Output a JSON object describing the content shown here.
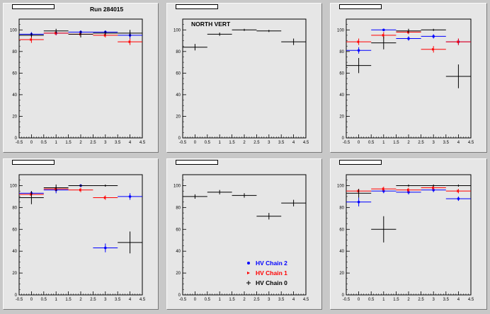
{
  "page": {
    "run_label": "Run 284015",
    "legend": [
      {
        "label": "HV Chain 2",
        "color": "#0000ff"
      },
      {
        "label": "HV Chain 1",
        "color": "#ff0000"
      },
      {
        "label": "HV Chain 0",
        "color": "#000000"
      }
    ]
  },
  "chart_data": [
    {
      "type": "scatter",
      "panel_title": "",
      "annotation": "",
      "xlim": [
        -0.5,
        4.5
      ],
      "ylim": [
        0,
        110
      ],
      "xticks": [
        "-0.5",
        "0",
        "0.5",
        "1",
        "1.5",
        "2",
        "2.5",
        "3",
        "3.5",
        "4",
        "4.5"
      ],
      "yticks": [
        "0",
        "20",
        "40",
        "60",
        "80",
        "100"
      ],
      "series": [
        {
          "name": "HV Chain 2",
          "color": "#0000ff",
          "points": [
            {
              "x": 0,
              "y": 96,
              "xerr": 0.5,
              "yerr": 2
            },
            {
              "x": 1,
              "y": 97,
              "xerr": 0.5,
              "yerr": 2
            },
            {
              "x": 2,
              "y": 98,
              "xerr": 0.5,
              "yerr": 1.5
            },
            {
              "x": 3,
              "y": 98,
              "xerr": 0.5,
              "yerr": 1.5
            },
            {
              "x": 4,
              "y": 95,
              "xerr": 0.5,
              "yerr": 3
            }
          ]
        },
        {
          "name": "HV Chain 1",
          "color": "#ff0000",
          "points": [
            {
              "x": 0,
              "y": 91,
              "xerr": 0.5,
              "yerr": 3
            },
            {
              "x": 1,
              "y": 97,
              "xerr": 0.5,
              "yerr": 2
            },
            {
              "x": 2,
              "y": 96,
              "xerr": 0.5,
              "yerr": 2
            },
            {
              "x": 3,
              "y": 95,
              "xerr": 0.5,
              "yerr": 2
            },
            {
              "x": 4,
              "y": 89,
              "xerr": 0.5,
              "yerr": 3
            }
          ]
        },
        {
          "name": "HV Chain 0",
          "color": "#000000",
          "points": [
            {
              "x": 0,
              "y": 95,
              "xerr": 0.5,
              "yerr": 2
            },
            {
              "x": 1,
              "y": 99,
              "xerr": 0.5,
              "yerr": 2
            },
            {
              "x": 2,
              "y": 96,
              "xerr": 0.5,
              "yerr": 3
            },
            {
              "x": 3,
              "y": 97,
              "xerr": 0.5,
              "yerr": 2
            },
            {
              "x": 4,
              "y": 97,
              "xerr": 0.5,
              "yerr": 3
            }
          ]
        }
      ]
    },
    {
      "type": "scatter",
      "panel_title": "",
      "annotation": "NORTH VERT",
      "xlim": [
        -0.5,
        4.5
      ],
      "ylim": [
        0,
        110
      ],
      "xticks": [
        "-0.5",
        "0",
        "0.5",
        "1",
        "1.5",
        "2",
        "2.5",
        "3",
        "3.5",
        "4",
        "4.5"
      ],
      "yticks": [
        "0",
        "20",
        "40",
        "60",
        "80",
        "100"
      ],
      "series": [
        {
          "name": "HV Chain 0",
          "color": "#000000",
          "points": [
            {
              "x": 0,
              "y": 84,
              "xerr": 0.5,
              "yerr": 3
            },
            {
              "x": 1,
              "y": 96,
              "xerr": 0.5,
              "yerr": 1.5
            },
            {
              "x": 2,
              "y": 100,
              "xerr": 0.5,
              "yerr": 1
            },
            {
              "x": 3,
              "y": 99,
              "xerr": 0.5,
              "yerr": 1
            },
            {
              "x": 4,
              "y": 89,
              "xerr": 0.5,
              "yerr": 3
            }
          ]
        }
      ]
    },
    {
      "type": "scatter",
      "panel_title": "",
      "annotation": "",
      "xlim": [
        -0.5,
        4.5
      ],
      "ylim": [
        0,
        110
      ],
      "xticks": [
        "-0.5",
        "0",
        "0.5",
        "1",
        "1.5",
        "2",
        "2.5",
        "3",
        "3.5",
        "4",
        "4.5"
      ],
      "yticks": [
        "0",
        "20",
        "40",
        "60",
        "80",
        "100"
      ],
      "series": [
        {
          "name": "HV Chain 2",
          "color": "#0000ff",
          "points": [
            {
              "x": 0,
              "y": 81,
              "xerr": 0.5,
              "yerr": 3
            },
            {
              "x": 1,
              "y": 100,
              "xerr": 0.5,
              "yerr": 1
            },
            {
              "x": 2,
              "y": 92,
              "xerr": 0.5,
              "yerr": 2
            },
            {
              "x": 3,
              "y": 94,
              "xerr": 0.5,
              "yerr": 2
            },
            {
              "x": 4,
              "y": 89,
              "xerr": 0.5,
              "yerr": 3
            }
          ]
        },
        {
          "name": "HV Chain 1",
          "color": "#ff0000",
          "points": [
            {
              "x": 0,
              "y": 89,
              "xerr": 0.5,
              "yerr": 3
            },
            {
              "x": 1,
              "y": 95,
              "xerr": 0.5,
              "yerr": 3
            },
            {
              "x": 2,
              "y": 98,
              "xerr": 0.5,
              "yerr": 2
            },
            {
              "x": 3,
              "y": 82,
              "xerr": 0.5,
              "yerr": 3
            },
            {
              "x": 4,
              "y": 89,
              "xerr": 0.5,
              "yerr": 3
            }
          ]
        },
        {
          "name": "HV Chain 0",
          "color": "#000000",
          "points": [
            {
              "x": 0,
              "y": 67,
              "xerr": 0.5,
              "yerr": 7
            },
            {
              "x": 1,
              "y": 88,
              "xerr": 0.5,
              "yerr": 6
            },
            {
              "x": 2,
              "y": 99,
              "xerr": 0.5,
              "yerr": 2
            },
            {
              "x": 3,
              "y": 100,
              "xerr": 0.5,
              "yerr": 1
            },
            {
              "x": 4,
              "y": 57,
              "xerr": 0.5,
              "yerr": 11
            }
          ]
        }
      ]
    },
    {
      "type": "scatter",
      "panel_title": "",
      "annotation": "",
      "xlim": [
        -0.5,
        4.5
      ],
      "ylim": [
        0,
        110
      ],
      "xticks": [
        "-0.5",
        "0",
        "0.5",
        "1",
        "1.5",
        "2",
        "2.5",
        "3",
        "3.5",
        "4",
        "4.5"
      ],
      "yticks": [
        "0",
        "20",
        "40",
        "60",
        "80",
        "100"
      ],
      "series": [
        {
          "name": "HV Chain 2",
          "color": "#0000ff",
          "points": [
            {
              "x": 0,
              "y": 93,
              "xerr": 0.5,
              "yerr": 2
            },
            {
              "x": 1,
              "y": 96,
              "xerr": 0.5,
              "yerr": 3
            },
            {
              "x": 2,
              "y": 100,
              "xerr": 0.5,
              "yerr": 1
            },
            {
              "x": 3,
              "y": 43,
              "xerr": 0.5,
              "yerr": 4
            },
            {
              "x": 4,
              "y": 90,
              "xerr": 0.5,
              "yerr": 3
            }
          ]
        },
        {
          "name": "HV Chain 1",
          "color": "#ff0000",
          "points": [
            {
              "x": 0,
              "y": 92,
              "xerr": 0.5,
              "yerr": 2
            },
            {
              "x": 1,
              "y": 97,
              "xerr": 0.5,
              "yerr": 2
            },
            {
              "x": 2,
              "y": 96,
              "xerr": 0.5,
              "yerr": 2
            },
            {
              "x": 3,
              "y": 89,
              "xerr": 0.5,
              "yerr": 2
            }
          ]
        },
        {
          "name": "HV Chain 0",
          "color": "#000000",
          "points": [
            {
              "x": 0,
              "y": 89,
              "xerr": 0.5,
              "yerr": 6
            },
            {
              "x": 1,
              "y": 98,
              "xerr": 0.5,
              "yerr": 3
            },
            {
              "x": 2,
              "y": 100,
              "xerr": 0.5,
              "yerr": 1
            },
            {
              "x": 3,
              "y": 100,
              "xerr": 0.5,
              "yerr": 1
            },
            {
              "x": 4,
              "y": 48,
              "xerr": 0.5,
              "yerr": 10
            }
          ]
        }
      ]
    },
    {
      "type": "scatter",
      "panel_title": "",
      "annotation": "",
      "xlim": [
        -0.5,
        4.5
      ],
      "ylim": [
        0,
        110
      ],
      "xticks": [
        "-0.5",
        "0",
        "0.5",
        "1",
        "1.5",
        "2",
        "2.5",
        "3",
        "3.5",
        "4",
        "4.5"
      ],
      "yticks": [
        "0",
        "20",
        "40",
        "60",
        "80",
        "100"
      ],
      "legend": true,
      "series": [
        {
          "name": "HV Chain 0",
          "color": "#000000",
          "points": [
            {
              "x": 0,
              "y": 90,
              "xerr": 0.5,
              "yerr": 2
            },
            {
              "x": 1,
              "y": 94,
              "xerr": 0.5,
              "yerr": 2
            },
            {
              "x": 2,
              "y": 91,
              "xerr": 0.5,
              "yerr": 2
            },
            {
              "x": 3,
              "y": 72,
              "xerr": 0.5,
              "yerr": 3
            },
            {
              "x": 4,
              "y": 84,
              "xerr": 0.5,
              "yerr": 3
            }
          ]
        }
      ]
    },
    {
      "type": "scatter",
      "panel_title": "",
      "annotation": "",
      "xlim": [
        -0.5,
        4.5
      ],
      "ylim": [
        0,
        110
      ],
      "xticks": [
        "-0.5",
        "0",
        "0.5",
        "1",
        "1.5",
        "2",
        "2.5",
        "3",
        "3.5",
        "4",
        "4.5"
      ],
      "yticks": [
        "0",
        "20",
        "40",
        "60",
        "80",
        "100"
      ],
      "series": [
        {
          "name": "HV Chain 2",
          "color": "#0000ff",
          "points": [
            {
              "x": 0,
              "y": 85,
              "xerr": 0.5,
              "yerr": 4
            },
            {
              "x": 1,
              "y": 95,
              "xerr": 0.5,
              "yerr": 2
            },
            {
              "x": 2,
              "y": 94,
              "xerr": 0.5,
              "yerr": 2
            },
            {
              "x": 3,
              "y": 96,
              "xerr": 0.5,
              "yerr": 2
            },
            {
              "x": 4,
              "y": 88,
              "xerr": 0.5,
              "yerr": 2
            }
          ]
        },
        {
          "name": "HV Chain 1",
          "color": "#ff0000",
          "points": [
            {
              "x": 0,
              "y": 95,
              "xerr": 0.5,
              "yerr": 2
            },
            {
              "x": 1,
              "y": 97,
              "xerr": 0.5,
              "yerr": 2
            },
            {
              "x": 2,
              "y": 96,
              "xerr": 0.5,
              "yerr": 2
            },
            {
              "x": 3,
              "y": 98,
              "xerr": 0.5,
              "yerr": 2
            },
            {
              "x": 4,
              "y": 95,
              "xerr": 0.5,
              "yerr": 2
            }
          ]
        },
        {
          "name": "HV Chain 0",
          "color": "#000000",
          "points": [
            {
              "x": 0,
              "y": 93,
              "xerr": 0.5,
              "yerr": 4
            },
            {
              "x": 1,
              "y": 60,
              "xerr": 0.5,
              "yerr": 12
            },
            {
              "x": 2,
              "y": 100,
              "xerr": 0.5,
              "yerr": 1
            },
            {
              "x": 3,
              "y": 100,
              "xerr": 0.5,
              "yerr": 1
            },
            {
              "x": 4,
              "y": 100,
              "xerr": 0.5,
              "yerr": 1
            }
          ]
        }
      ]
    }
  ]
}
